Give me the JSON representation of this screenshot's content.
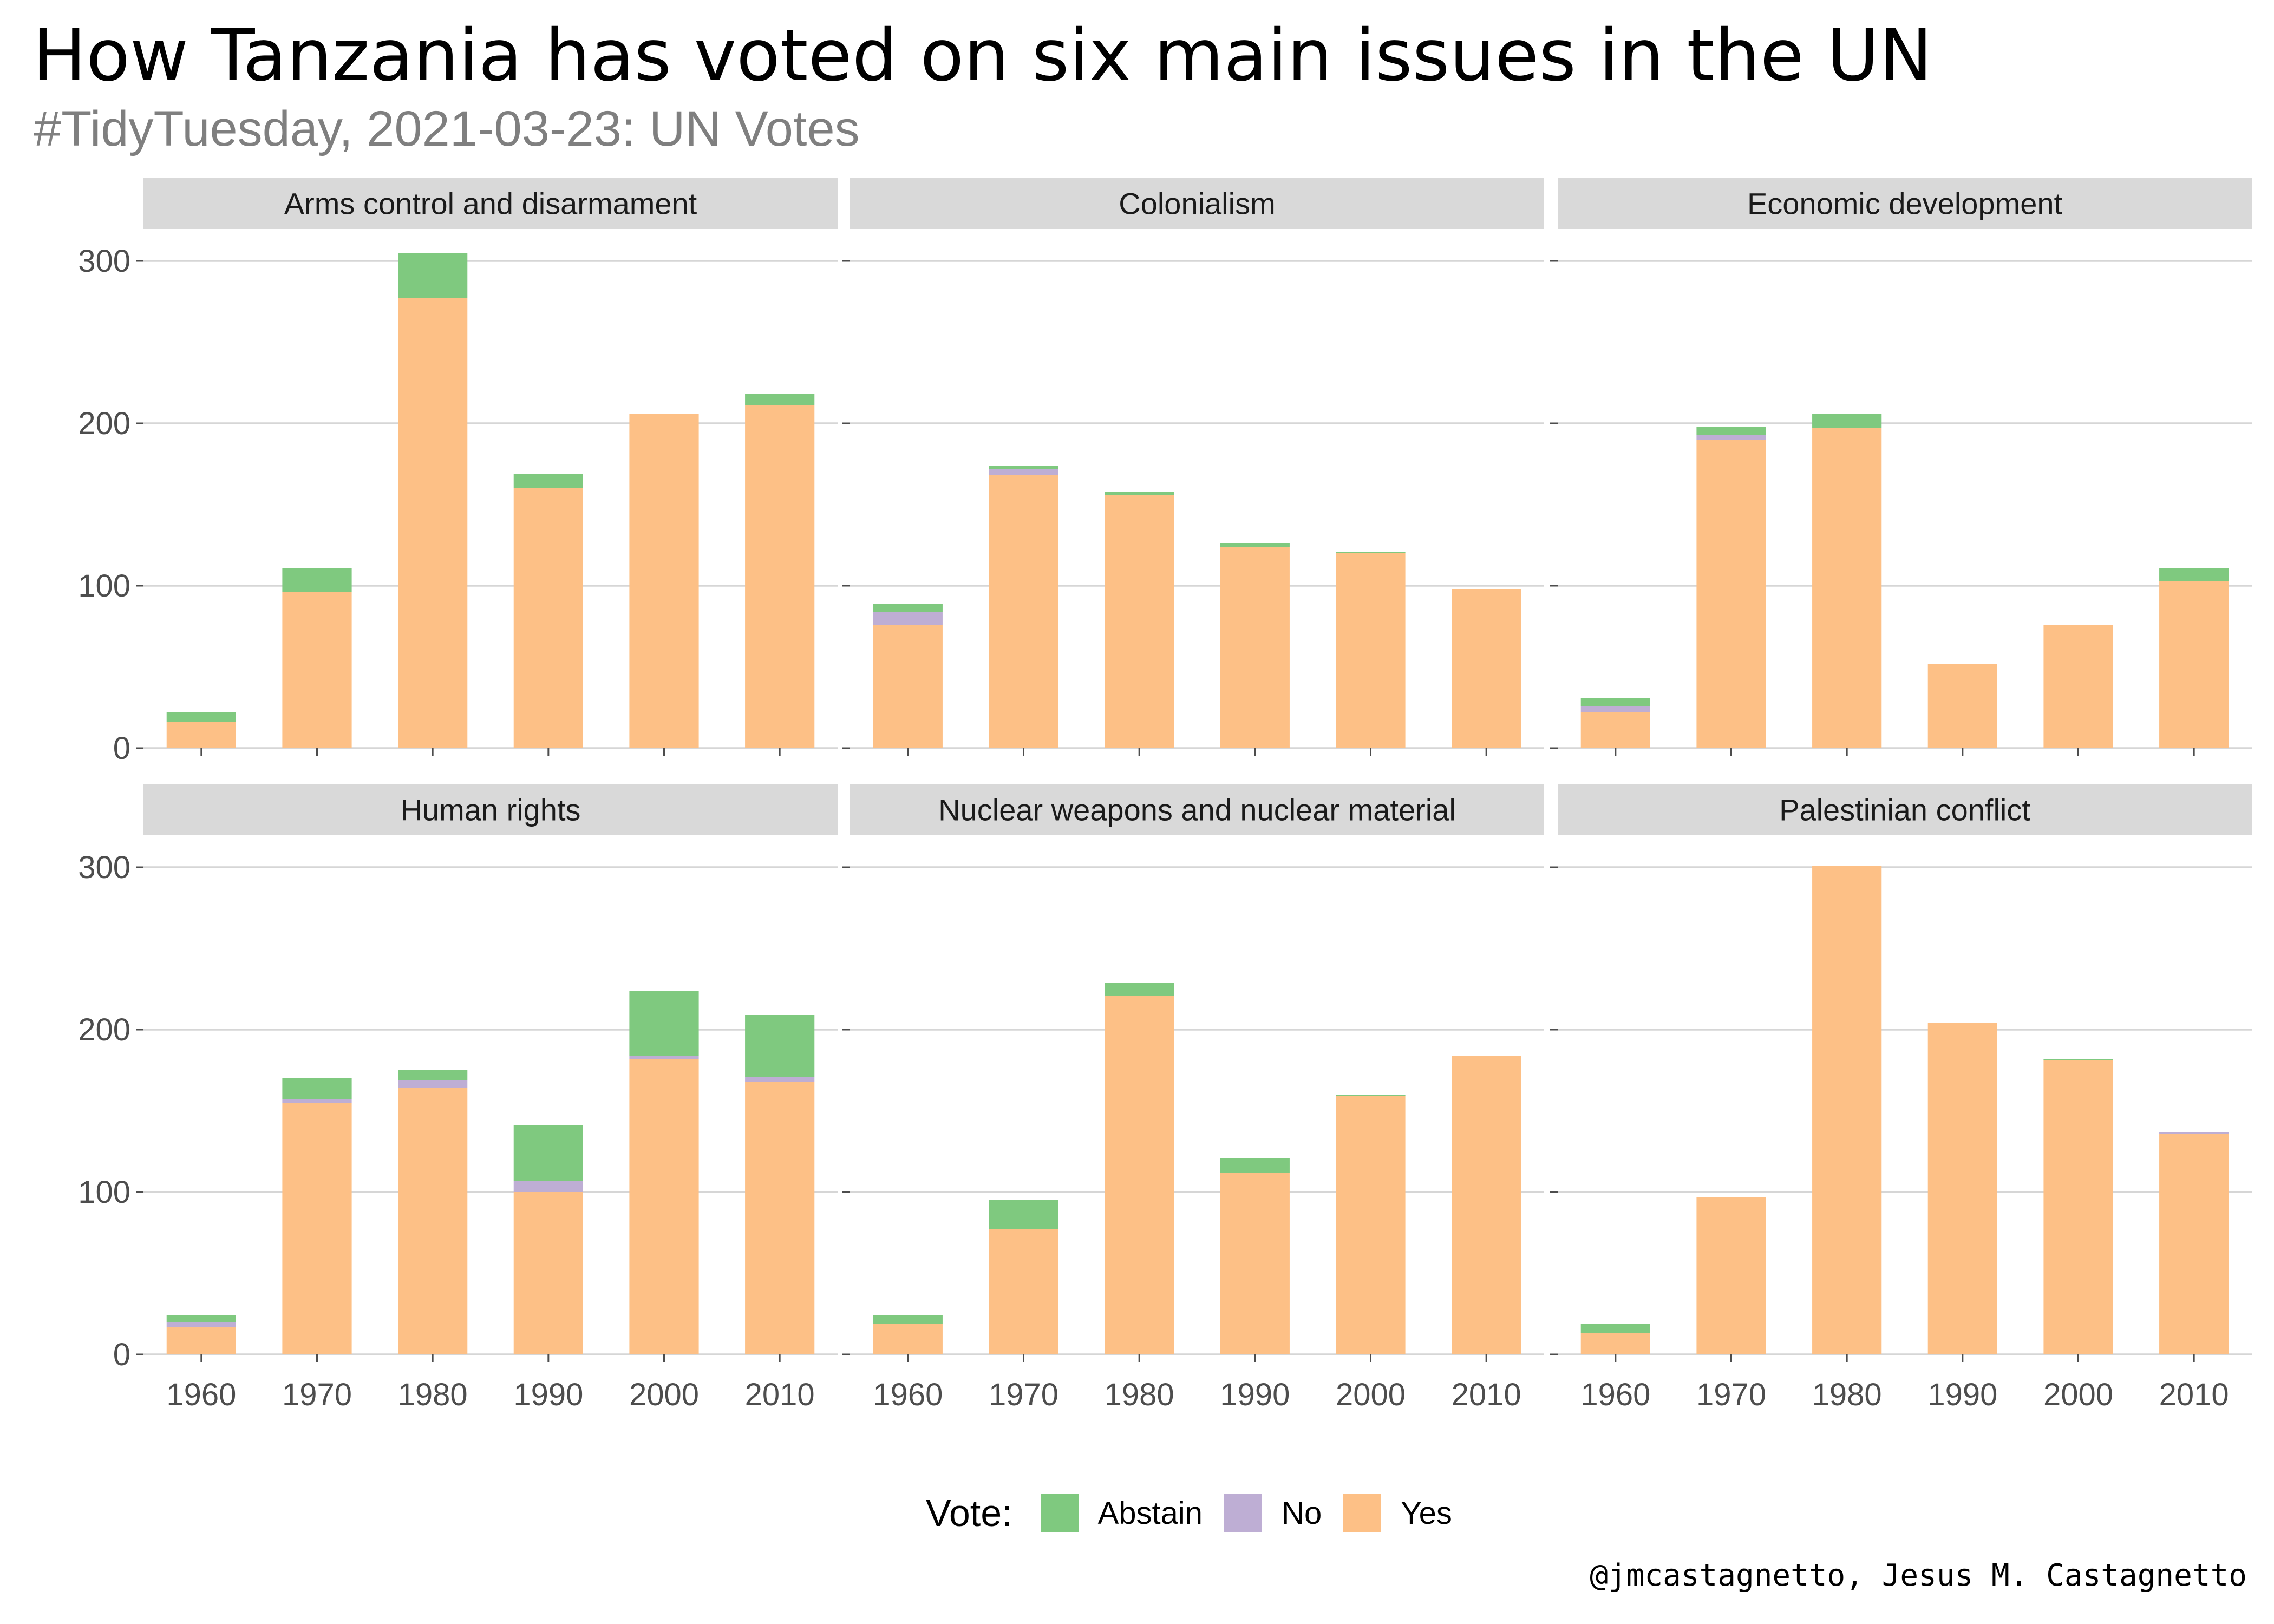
{
  "title": "How Tanzania has voted on six main issues in the UN",
  "subtitle": "#TidyTuesday, 2021-03-23: UN Votes",
  "caption": "@jmcastagnetto, Jesus M. Castagnetto",
  "legend": {
    "title": "Vote:",
    "items": [
      {
        "label": "Abstain",
        "color": "#7fc97f"
      },
      {
        "label": "No",
        "color": "#beaed4"
      },
      {
        "label": "Yes",
        "color": "#fdc086"
      }
    ]
  },
  "chart_data": {
    "type": "bar",
    "stacked": true,
    "facets": "3x2",
    "categories": [
      "1960",
      "1970",
      "1980",
      "1990",
      "2000",
      "2010"
    ],
    "y_ticks": [
      "0",
      "100",
      "200",
      "300"
    ],
    "ylim": [
      0,
      320
    ],
    "grid": true,
    "legend_position": "bottom",
    "series_order": [
      "Abstain",
      "No",
      "Yes"
    ],
    "panels": [
      {
        "title": "Arms control and disarmament",
        "series": [
          {
            "name": "Yes",
            "values": [
              16,
              96,
              277,
              160,
              206,
              211
            ]
          },
          {
            "name": "No",
            "values": [
              0,
              0,
              0,
              0,
              0,
              0
            ]
          },
          {
            "name": "Abstain",
            "values": [
              6,
              15,
              28,
              9,
              0,
              7
            ]
          }
        ]
      },
      {
        "title": "Colonialism",
        "series": [
          {
            "name": "Yes",
            "values": [
              76,
              168,
              156,
              124,
              120,
              98
            ]
          },
          {
            "name": "No",
            "values": [
              8,
              4,
              0,
              0,
              0,
              0
            ]
          },
          {
            "name": "Abstain",
            "values": [
              5,
              2,
              2,
              2,
              1,
              0
            ]
          }
        ]
      },
      {
        "title": "Economic development",
        "series": [
          {
            "name": "Yes",
            "values": [
              22,
              190,
              197,
              52,
              76,
              103
            ]
          },
          {
            "name": "No",
            "values": [
              4,
              3,
              0,
              0,
              0,
              0
            ]
          },
          {
            "name": "Abstain",
            "values": [
              5,
              5,
              9,
              0,
              0,
              8
            ]
          }
        ]
      },
      {
        "title": "Human rights",
        "series": [
          {
            "name": "Yes",
            "values": [
              17,
              155,
              164,
              100,
              182,
              168
            ]
          },
          {
            "name": "No",
            "values": [
              3,
              2,
              5,
              7,
              2,
              3
            ]
          },
          {
            "name": "Abstain",
            "values": [
              4,
              13,
              6,
              34,
              40,
              38
            ]
          }
        ]
      },
      {
        "title": "Nuclear weapons and nuclear material",
        "series": [
          {
            "name": "Yes",
            "values": [
              19,
              77,
              221,
              112,
              159,
              184
            ]
          },
          {
            "name": "No",
            "values": [
              0,
              0,
              0,
              0,
              0,
              0
            ]
          },
          {
            "name": "Abstain",
            "values": [
              5,
              18,
              8,
              9,
              1,
              0
            ]
          }
        ]
      },
      {
        "title": "Palestinian conflict",
        "series": [
          {
            "name": "Yes",
            "values": [
              13,
              97,
              301,
              204,
              181,
              136
            ]
          },
          {
            "name": "No",
            "values": [
              0,
              0,
              0,
              0,
              0,
              1
            ]
          },
          {
            "name": "Abstain",
            "values": [
              6,
              0,
              0,
              0,
              1,
              0
            ]
          }
        ]
      }
    ]
  }
}
